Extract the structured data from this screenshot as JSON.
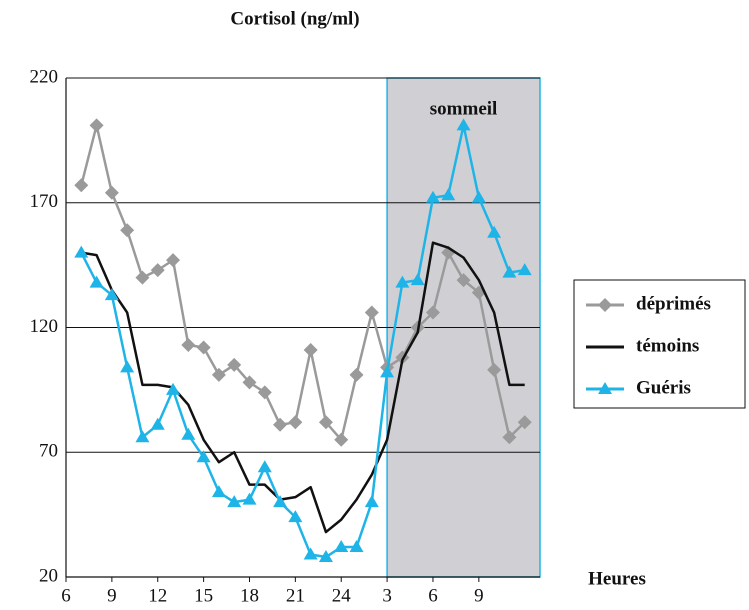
{
  "chart_data": {
    "type": "line",
    "title": "Cortisol (ng/ml)",
    "x_label": "Heures",
    "x": [
      7,
      8,
      9,
      10,
      11,
      12,
      13,
      14,
      15,
      16,
      17,
      18,
      19,
      20,
      21,
      22,
      23,
      24,
      25,
      26,
      27,
      28,
      29,
      30,
      31,
      32,
      33,
      34,
      35,
      36
    ],
    "series": [
      {
        "name": "déprimés",
        "color": "#9a9a9a",
        "marker": "diamond",
        "values": [
          177,
          201,
          174,
          159,
          140,
          143,
          147,
          113,
          112,
          101,
          105,
          98,
          94,
          81,
          82,
          111,
          82,
          75,
          101,
          126,
          104,
          108,
          120,
          126,
          150,
          139,
          134,
          103,
          76,
          82
        ]
      },
      {
        "name": "témoins",
        "color": "#111111",
        "marker": "none",
        "values": [
          150,
          149,
          135,
          126,
          97,
          97,
          96,
          89,
          75,
          66,
          70,
          57,
          57,
          51,
          52,
          56,
          38,
          43,
          51,
          61,
          75,
          107,
          118,
          154,
          152,
          148,
          139,
          126,
          97,
          97
        ]
      },
      {
        "name": "Guéris",
        "color": "#1fb4e8",
        "marker": "triangle",
        "values": [
          150,
          138,
          133,
          104,
          76,
          81,
          95,
          77,
          68,
          54,
          50,
          51,
          64,
          50,
          44,
          29,
          28,
          32,
          32,
          50,
          102,
          138,
          139,
          172,
          173,
          201,
          172,
          158,
          142,
          143
        ]
      }
    ],
    "sleep_region": {
      "label": "sommeil",
      "start": 27,
      "end": 37,
      "color": "#d0d0d4",
      "border": "#1fb4e8"
    },
    "xlim": [
      6,
      37
    ],
    "xticks": [
      6,
      9,
      12,
      15,
      18,
      21,
      24,
      {
        "value": 27,
        "label": "3"
      },
      {
        "value": 30,
        "label": "6"
      },
      {
        "value": 33,
        "label": "9"
      }
    ],
    "ylim": [
      20,
      220
    ],
    "yticks": [
      20,
      70,
      120,
      170,
      220
    ],
    "grid": true,
    "legend": "right"
  }
}
